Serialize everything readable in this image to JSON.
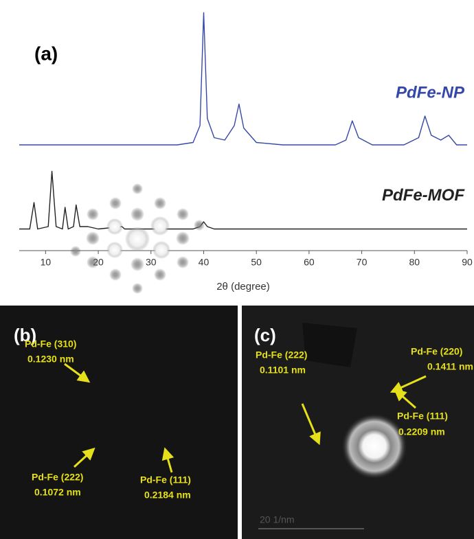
{
  "chart_data": {
    "type": "line",
    "panel_label": "(a)",
    "xlabel": "2θ (degree)",
    "x": [
      5,
      7,
      7.8,
      8.5,
      10.5,
      11.2,
      12,
      13.2,
      13.7,
      14.3,
      15.3,
      15.8,
      16.5,
      18,
      20,
      24.5,
      25,
      30,
      35,
      38,
      39.3,
      40,
      40.7,
      42,
      44,
      45.8,
      46.7,
      47.6,
      50,
      55,
      60,
      65,
      67,
      68.2,
      69.4,
      72,
      78,
      80.8,
      82,
      83.2,
      85,
      86.5,
      88,
      90
    ],
    "series": [
      {
        "name": "PdFe-NP",
        "color": "#3548a8",
        "values": [
          44,
          44,
          44,
          44,
          44,
          44,
          44,
          44,
          44,
          44,
          44,
          44,
          44,
          44,
          44,
          44,
          44,
          44,
          44,
          45,
          52,
          99,
          55,
          47,
          46,
          52,
          61,
          51,
          45,
          44,
          44,
          44,
          46,
          54,
          47,
          44,
          44,
          47,
          56,
          48,
          46,
          48,
          44,
          44
        ]
      },
      {
        "name": "PdFe-MOF",
        "color": "#222222",
        "values": [
          9,
          9,
          20,
          9,
          10,
          33,
          10,
          9,
          18,
          9,
          10,
          19,
          10,
          10,
          9,
          10,
          9,
          9,
          9,
          9,
          10,
          12,
          10,
          9,
          9,
          9,
          9,
          9,
          9,
          9,
          9,
          9,
          9,
          9,
          9,
          9,
          9,
          9,
          9,
          9,
          9,
          9,
          9,
          9
        ]
      }
    ],
    "xlim": [
      5,
      90
    ],
    "xticks": [
      10,
      20,
      30,
      40,
      50,
      60,
      70,
      80,
      90
    ],
    "ylim": [
      0,
      100
    ]
  },
  "panels": [
    {
      "label": "(b)",
      "annotations": [
        {
          "title": "Pd-Fe (310)",
          "spacing": "0.1230 nm"
        },
        {
          "title": "Pd-Fe (222)",
          "spacing": "0.1072 nm"
        },
        {
          "title": "Pd-Fe (111)",
          "spacing": "0.2184 nm"
        }
      ]
    },
    {
      "label": "(c)",
      "annotations": [
        {
          "title": "Pd-Fe (220)",
          "spacing": "0.1411 nm"
        },
        {
          "title": "Pd-Fe (222)",
          "spacing": "0.1101 nm"
        },
        {
          "title": "Pd-Fe (111)",
          "spacing": "0.2209 nm"
        }
      ],
      "scale_bar": "20 1/nm"
    }
  ]
}
